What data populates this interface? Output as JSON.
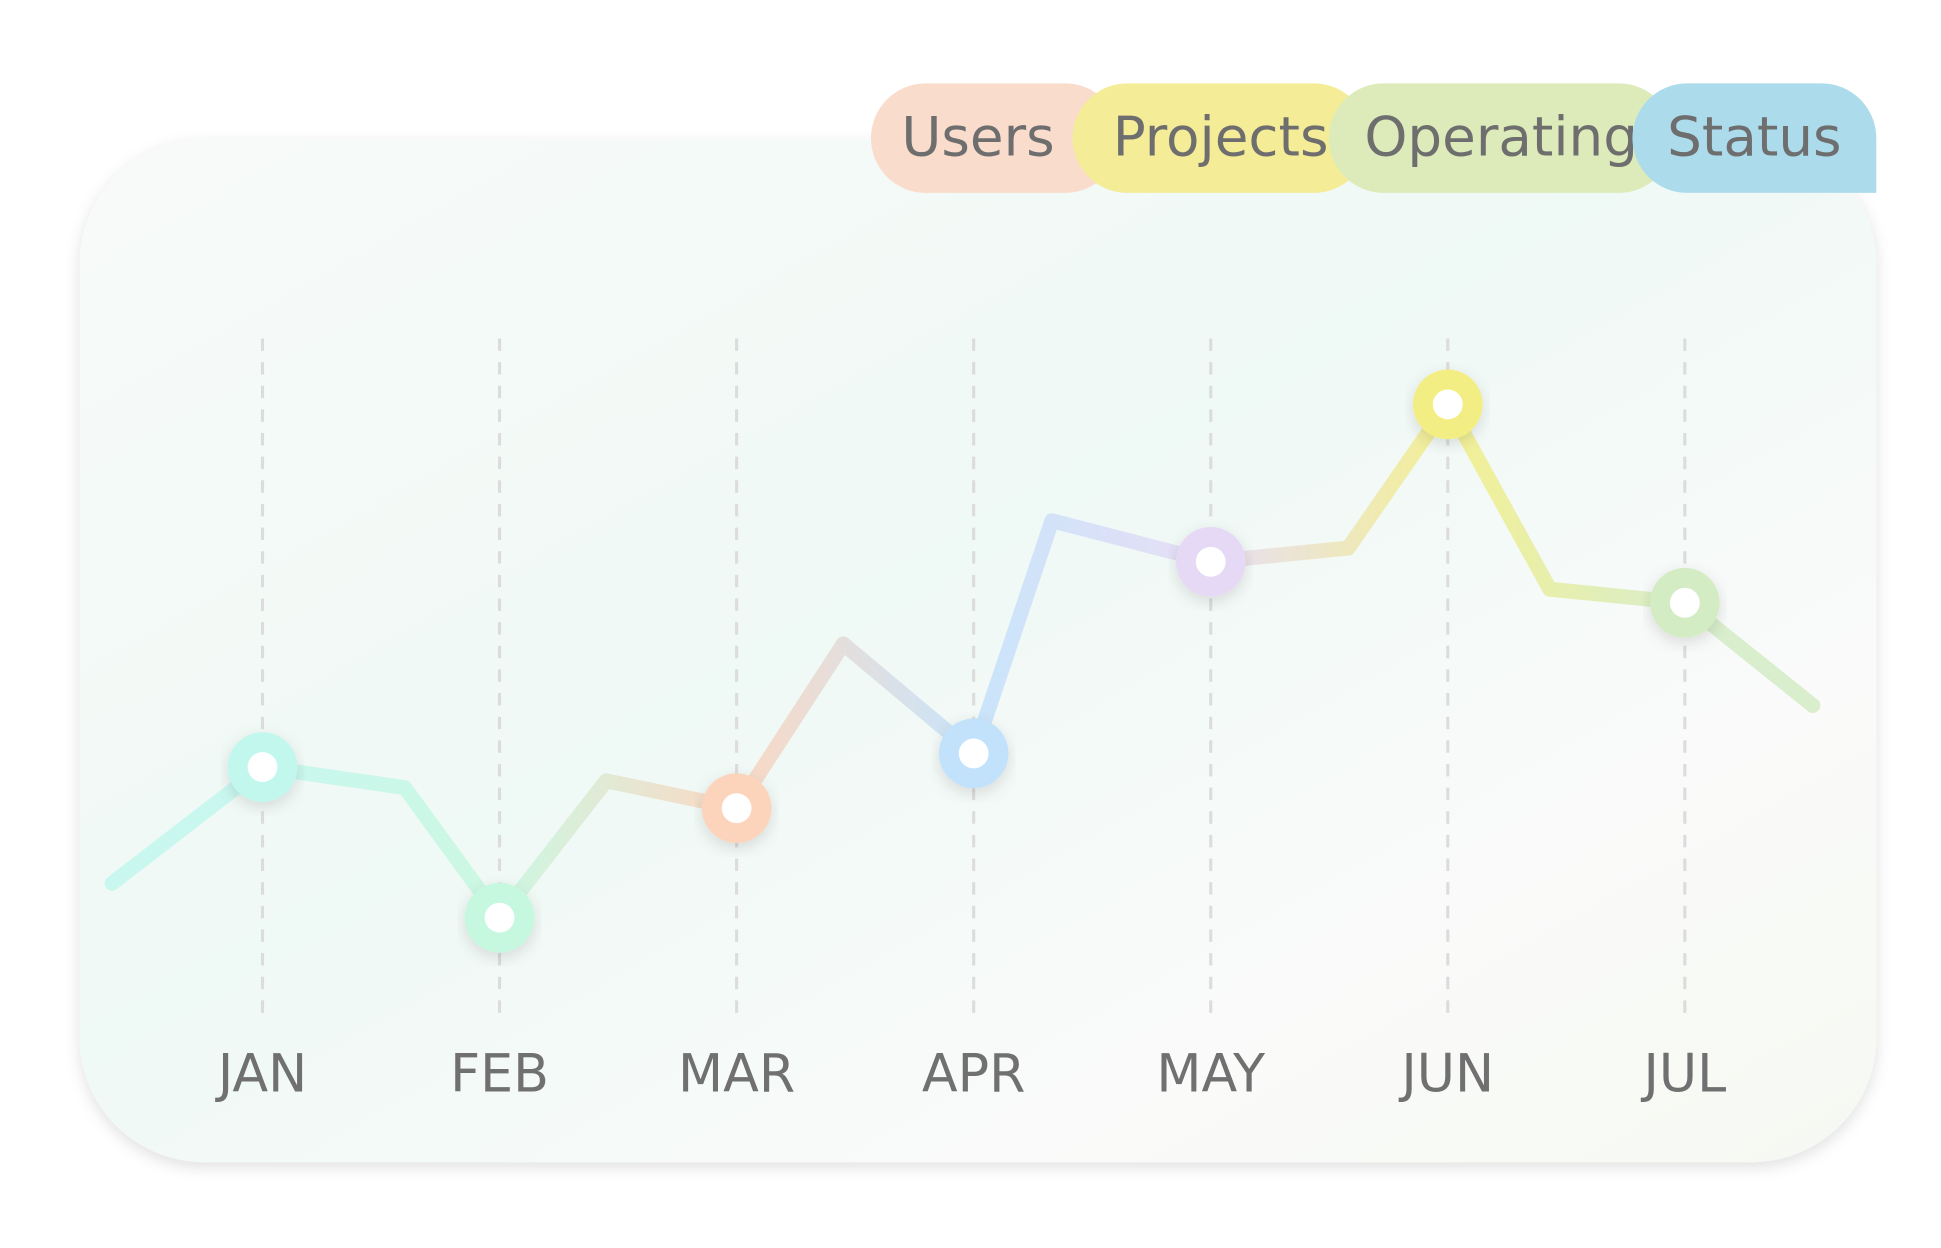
{
  "chart_data": {
    "type": "line",
    "tabs": [
      {
        "label": "Users",
        "color": "#f9dccb"
      },
      {
        "label": "Projects",
        "color": "#f5ec98"
      },
      {
        "label": "Operating",
        "color": "#dcebb9"
      },
      {
        "label": "Status",
        "color": "#acdcec"
      }
    ],
    "x": [
      0.365,
      1,
      1.6,
      2,
      2.45,
      3,
      3.45,
      4,
      4.33,
      5,
      5.58,
      6,
      6.43,
      7,
      7.54
    ],
    "series": [
      {
        "values": [
          20,
          37,
          34,
          15,
          35,
          31,
          55,
          39,
          73,
          67,
          69,
          90,
          63,
          61,
          46
        ]
      }
    ],
    "marker_colors": [
      "#c2f7ee",
      "#c6f7df",
      "#fcd3bb",
      "#c2e1fb",
      "#e6d9f5",
      "#f3ee83",
      "#d3ecc4"
    ],
    "xlim": [
      0.365,
      7.54
    ],
    "ylim": [
      0,
      100
    ],
    "xticks": [
      {
        "value": 1,
        "label": "JAN"
      },
      {
        "value": 2,
        "label": "FEB"
      },
      {
        "value": 3,
        "label": "MAR"
      },
      {
        "value": 4,
        "label": "APR"
      },
      {
        "value": 5,
        "label": "MAY"
      },
      {
        "value": 6,
        "label": "JUN"
      },
      {
        "value": 7,
        "label": "JUL"
      }
    ],
    "grid": true
  }
}
